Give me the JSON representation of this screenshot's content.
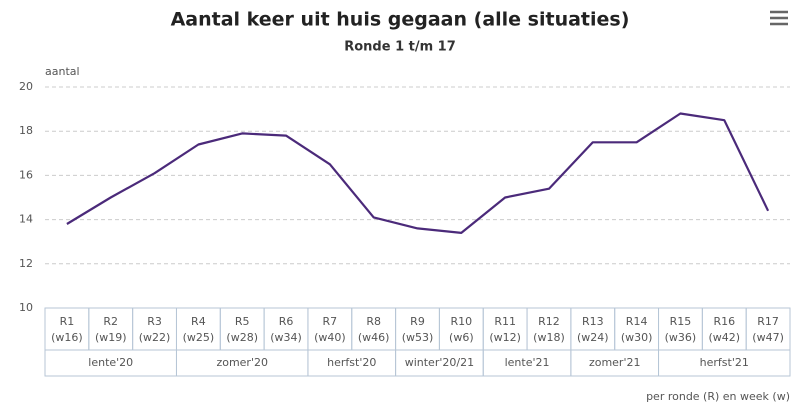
{
  "chart_data": {
    "type": "line",
    "title": "Aantal keer uit huis gegaan (alle situaties)",
    "subtitle": "Ronde 1 t/m 17",
    "y_label": "aantal",
    "footnote": "per ronde (R) en week (w)",
    "categories": [
      "R1",
      "R2",
      "R3",
      "R4",
      "R5",
      "R6",
      "R7",
      "R8",
      "R9",
      "R10",
      "R11",
      "R12",
      "R13",
      "R14",
      "R15",
      "R16",
      "R17"
    ],
    "category_weeks": [
      "(w16)",
      "(w19)",
      "(w22)",
      "(w25)",
      "(w28)",
      "(w34)",
      "(w40)",
      "(w46)",
      "(w53)",
      "(w6)",
      "(w12)",
      "(w18)",
      "(w24)",
      "(w30)",
      "(w36)",
      "(w42)",
      "(w47)"
    ],
    "category_groups": [
      {
        "label": "lente'20",
        "size": 3
      },
      {
        "label": "zomer'20",
        "size": 3
      },
      {
        "label": "herfst'20",
        "size": 2
      },
      {
        "label": "winter'20/21",
        "size": 2
      },
      {
        "label": "lente'21",
        "size": 2
      },
      {
        "label": "zomer'21",
        "size": 2
      },
      {
        "label": "herfst'21",
        "size": 3
      }
    ],
    "values": [
      13.8,
      15.0,
      16.1,
      17.4,
      17.9,
      17.8,
      16.5,
      14.1,
      13.6,
      13.4,
      15.0,
      15.4,
      17.5,
      17.5,
      18.8,
      18.5,
      14.4
    ],
    "color": "#4b2a7a",
    "ylim": [
      10,
      20
    ],
    "yticks": [
      10,
      12,
      14,
      16,
      18,
      20
    ],
    "grid": true
  }
}
